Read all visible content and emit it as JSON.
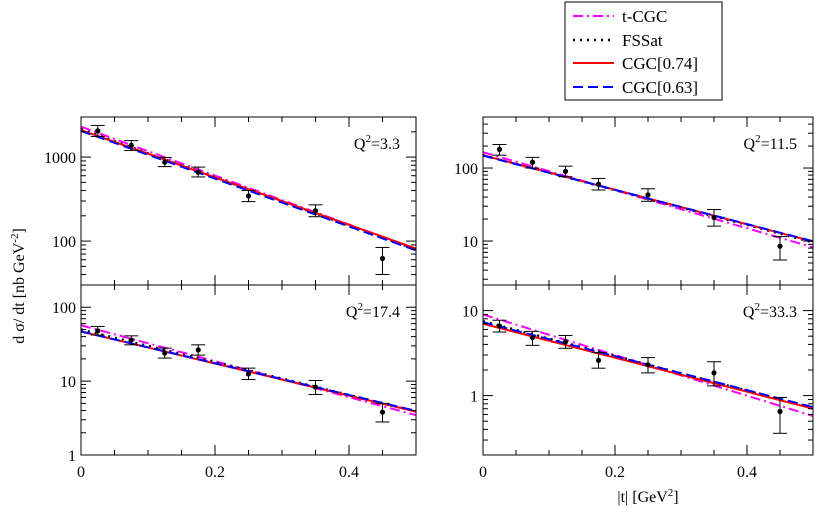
{
  "chart_data": {
    "type": "line",
    "ylabel": "d σ/ dt [nb GeV^-2]",
    "xlabel": "|t| [GeV^2]",
    "legend_position": "top-center",
    "series_styles": [
      {
        "name": "t-CGC",
        "color": "#ff00ff",
        "dash": "dash-dot"
      },
      {
        "name": "FSSat",
        "color": "#000000",
        "dash": "dotted"
      },
      {
        "name": "CGC[0.74]",
        "color": "#ff0000",
        "dash": "solid"
      },
      {
        "name": "CGC[0.63]",
        "color": "#0000ff",
        "dash": "dashed"
      }
    ],
    "panels": [
      {
        "id": "q2-3.3",
        "label": "Q^2=3.3",
        "xlim": [
          0,
          0.5
        ],
        "ylim": [
          30,
          3000
        ],
        "yscale": "log",
        "yticks": [
          100,
          1000
        ],
        "xticks": [],
        "points": [
          {
            "t": 0.025,
            "y": 2050,
            "lo": 1760,
            "hi": 2380
          },
          {
            "t": 0.075,
            "y": 1380,
            "lo": 1200,
            "hi": 1570
          },
          {
            "t": 0.125,
            "y": 870,
            "lo": 770,
            "hi": 990
          },
          {
            "t": 0.175,
            "y": 660,
            "lo": 580,
            "hi": 760
          },
          {
            "t": 0.25,
            "y": 345,
            "lo": 295,
            "hi": 400
          },
          {
            "t": 0.35,
            "y": 230,
            "lo": 195,
            "hi": 270
          },
          {
            "t": 0.45,
            "y": 62,
            "lo": 40,
            "hi": 84
          }
        ],
        "series": [
          {
            "name": "t-CGC",
            "y0": 2300,
            "slope": 6.7
          },
          {
            "name": "FSSat",
            "y0": 2150,
            "slope": 6.6
          },
          {
            "name": "CGC[0.74]",
            "y0": 2100,
            "slope": 6.5
          },
          {
            "name": "CGC[0.63]",
            "y0": 2050,
            "slope": 6.55
          }
        ]
      },
      {
        "id": "q2-11.5",
        "label": "Q^2=11.5",
        "xlim": [
          0,
          0.5
        ],
        "ylim": [
          2.5,
          500
        ],
        "yscale": "log",
        "yticks": [
          10,
          100
        ],
        "xticks": [],
        "points": [
          {
            "t": 0.025,
            "y": 180,
            "lo": 150,
            "hi": 210
          },
          {
            "t": 0.075,
            "y": 120,
            "lo": 100,
            "hi": 140
          },
          {
            "t": 0.125,
            "y": 90,
            "lo": 76,
            "hi": 106
          },
          {
            "t": 0.175,
            "y": 60,
            "lo": 50,
            "hi": 72
          },
          {
            "t": 0.25,
            "y": 43,
            "lo": 35,
            "hi": 52
          },
          {
            "t": 0.35,
            "y": 21,
            "lo": 16,
            "hi": 27
          },
          {
            "t": 0.45,
            "y": 8.5,
            "lo": 5.5,
            "hi": 11.5
          }
        ],
        "series": [
          {
            "name": "t-CGC",
            "y0": 165,
            "slope": 6.0
          },
          {
            "name": "FSSat",
            "y0": 150,
            "slope": 5.5
          },
          {
            "name": "CGC[0.74]",
            "y0": 150,
            "slope": 5.45
          },
          {
            "name": "CGC[0.63]",
            "y0": 148,
            "slope": 5.4
          }
        ]
      },
      {
        "id": "q2-17.4",
        "label": "Q^2=17.4",
        "xlim": [
          0,
          0.5
        ],
        "ylim": [
          1,
          200
        ],
        "yscale": "log",
        "yticks": [
          1,
          10,
          100
        ],
        "xticks": [
          0,
          0.2,
          0.4
        ],
        "points": [
          {
            "t": 0.025,
            "y": 48,
            "lo": 42,
            "hi": 55
          },
          {
            "t": 0.075,
            "y": 36,
            "lo": 31,
            "hi": 41
          },
          {
            "t": 0.125,
            "y": 24,
            "lo": 20.5,
            "hi": 28
          },
          {
            "t": 0.175,
            "y": 26.5,
            "lo": 22.5,
            "hi": 31
          },
          {
            "t": 0.25,
            "y": 12.5,
            "lo": 10.5,
            "hi": 15
          },
          {
            "t": 0.35,
            "y": 8.3,
            "lo": 6.6,
            "hi": 10.2
          },
          {
            "t": 0.45,
            "y": 3.8,
            "lo": 2.8,
            "hi": 5.0
          }
        ],
        "series": [
          {
            "name": "t-CGC",
            "y0": 57,
            "slope": 5.6
          },
          {
            "name": "FSSat",
            "y0": 50,
            "slope": 5.1
          },
          {
            "name": "CGC[0.74]",
            "y0": 47,
            "slope": 5.0
          },
          {
            "name": "CGC[0.63]",
            "y0": 47,
            "slope": 4.95
          }
        ]
      },
      {
        "id": "q2-33.3",
        "label": "Q^2=33.3",
        "xlim": [
          0,
          0.5
        ],
        "ylim": [
          0.2,
          20
        ],
        "yscale": "log",
        "yticks": [
          1,
          10
        ],
        "xticks": [
          0,
          0.2,
          0.4
        ],
        "points": [
          {
            "t": 0.025,
            "y": 6.6,
            "lo": 5.6,
            "hi": 7.7
          },
          {
            "t": 0.075,
            "y": 4.8,
            "lo": 3.9,
            "hi": 5.7
          },
          {
            "t": 0.125,
            "y": 4.3,
            "lo": 3.6,
            "hi": 5.1
          },
          {
            "t": 0.175,
            "y": 2.6,
            "lo": 2.1,
            "hi": 3.2
          },
          {
            "t": 0.25,
            "y": 2.3,
            "lo": 1.85,
            "hi": 2.8
          },
          {
            "t": 0.35,
            "y": 1.85,
            "lo": 1.3,
            "hi": 2.5
          },
          {
            "t": 0.45,
            "y": 0.65,
            "lo": 0.36,
            "hi": 0.95
          }
        ],
        "series": [
          {
            "name": "t-CGC",
            "y0": 9.0,
            "slope": 5.5
          },
          {
            "name": "FSSat",
            "y0": 7.5,
            "slope": 4.7
          },
          {
            "name": "CGC[0.74]",
            "y0": 7.0,
            "slope": 4.6
          },
          {
            "name": "CGC[0.63]",
            "y0": 7.3,
            "slope": 4.6
          }
        ]
      }
    ]
  }
}
